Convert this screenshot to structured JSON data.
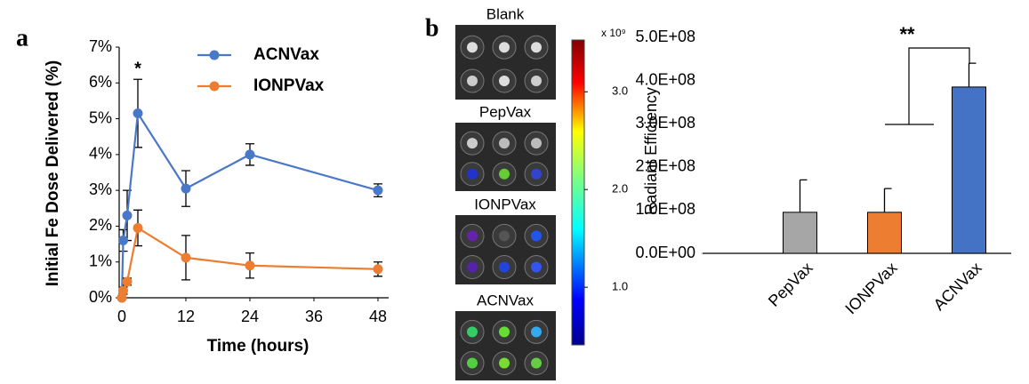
{
  "panel_labels": [
    "a",
    "b"
  ],
  "imaging": {
    "images": [
      {
        "label": "Blank"
      },
      {
        "label": "PepVax"
      },
      {
        "label": "IONPVax"
      },
      {
        "label": "ACNVax"
      }
    ],
    "colorbar": {
      "multiplier_label": "x 10⁹",
      "lim": [
        0.41,
        3.53
      ],
      "ticks": [
        {
          "value": 3,
          "label": "3.0"
        },
        {
          "value": 2,
          "label": "2.0"
        },
        {
          "value": 1,
          "label": "1.0"
        }
      ]
    }
  },
  "chart_data": [
    {
      "type": "line",
      "x_label": "Time (hours)",
      "y_label": "Initial Fe Dose Delivered (%)",
      "annotation": "*",
      "x": [
        0,
        0.25,
        1,
        3,
        12,
        24,
        48
      ],
      "series": [
        {
          "name": "ACNVax",
          "color": "#4a78c8",
          "values": [
            0,
            1.6,
            2.3,
            5.15,
            3.05,
            4.0,
            3.0
          ],
          "errors": [
            null,
            0.3,
            0.7,
            0.95,
            0.5,
            0.3,
            0.18
          ]
        },
        {
          "name": "IONPVax",
          "color": "#ed7d31",
          "values": [
            0,
            0.2,
            0.45,
            1.95,
            1.12,
            0.9,
            0.8
          ],
          "errors": [
            null,
            0.1,
            0.1,
            0.5,
            0.62,
            0.35,
            0.2
          ]
        }
      ],
      "xlim": [
        -0.5,
        50
      ],
      "xticks": [
        0,
        12,
        24,
        36,
        48
      ],
      "ylim": [
        0,
        7
      ],
      "yticks": [
        {
          "value": 0,
          "label": "0%"
        },
        {
          "value": 1,
          "label": "1%"
        },
        {
          "value": 2,
          "label": "2%"
        },
        {
          "value": 3,
          "label": "3%"
        },
        {
          "value": 4,
          "label": "4%"
        },
        {
          "value": 5,
          "label": "5%"
        },
        {
          "value": 6,
          "label": "6%"
        },
        {
          "value": 7,
          "label": "7%"
        }
      ],
      "legend": "top-right"
    },
    {
      "type": "bar",
      "y_label": "Radiant Efficiency",
      "annotation": "**",
      "categories": [
        "PepVax",
        "IONPVax",
        "ACNVax"
      ],
      "values": [
        95000000,
        95000000,
        385000000
      ],
      "errors": [
        75000000,
        55000000,
        55000000
      ],
      "colors": [
        "#a6a6a6",
        "#ed7d31",
        "#4472c4"
      ],
      "ylim": [
        0,
        500000000
      ],
      "yticks": [
        {
          "value": 0,
          "label": "0.0E+00"
        },
        {
          "value": 100000000,
          "label": "1.0E+08"
        },
        {
          "value": 200000000,
          "label": "2.0E+08"
        },
        {
          "value": 300000000,
          "label": "3.0E+08"
        },
        {
          "value": 400000000,
          "label": "4.0E+08"
        },
        {
          "value": 500000000,
          "label": "5.0E+08"
        }
      ]
    }
  ]
}
